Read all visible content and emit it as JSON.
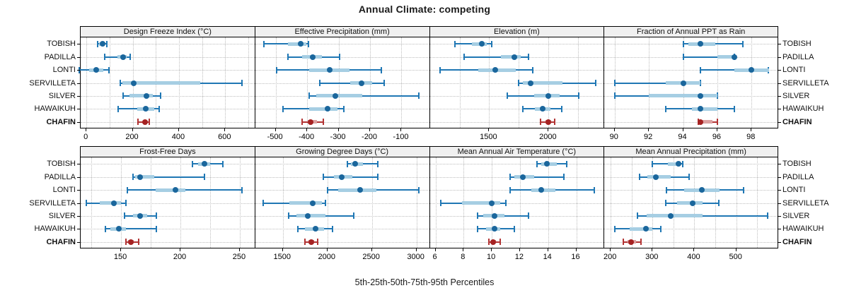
{
  "title": "Annual Climate: competing",
  "footer": "5th-25th-50th-75th-95th Percentiles",
  "sites": [
    "TOBISH",
    "PADILLA",
    "LONTI",
    "SERVILLETA",
    "SILVER",
    "HAWAIKUH",
    "CHAFIN"
  ],
  "highlight_site": "CHAFIN",
  "percentiles": [
    5,
    25,
    50,
    75,
    95
  ],
  "colors": {
    "blue_line": "#1f77b4",
    "blue_band": "#a6cee3",
    "blue_dot": "#1a669c",
    "red_line": "#b23434",
    "red_band": "#dca1a1",
    "red_dot": "#a52222",
    "grid": "#bdbdbd",
    "header_bg": "#f0f0f0",
    "border": "#000000"
  },
  "chart_data": [
    {
      "type": "percentile-dotplot",
      "title": "Design Freeze Index (°C)",
      "xlim": [
        -25,
        730
      ],
      "ticks": [
        0,
        200,
        400,
        600
      ],
      "grid": [
        0,
        100,
        200,
        300,
        400,
        500,
        600,
        700
      ],
      "series": [
        {
          "site": "TOBISH",
          "values": [
            48,
            55,
            70,
            80,
            87
          ]
        },
        {
          "site": "PADILLA",
          "values": [
            79,
            135,
            157,
            175,
            189
          ]
        },
        {
          "site": "LONTI",
          "values": [
            -31,
            12,
            43,
            73,
            97
          ]
        },
        {
          "site": "SERVILLETA",
          "values": [
            145,
            155,
            204,
            492,
            672
          ]
        },
        {
          "site": "SILVER",
          "values": [
            158,
            186,
            260,
            288,
            320
          ]
        },
        {
          "site": "HAWAIKUH",
          "values": [
            136,
            220,
            255,
            292,
            316
          ]
        },
        {
          "site": "CHAFIN",
          "values": [
            224,
            243,
            252,
            260,
            272
          ]
        }
      ]
    },
    {
      "type": "percentile-dotplot",
      "title": "Effective Precipitation (mm)",
      "xlim": [
        -565,
        -10
      ],
      "ticks": [
        -500,
        -400,
        -300,
        -200,
        -100
      ],
      "grid": [
        -500,
        -400,
        -300,
        -200,
        -100
      ],
      "series": [
        {
          "site": "TOBISH",
          "values": [
            -537,
            -460,
            -420,
            -402,
            -396
          ]
        },
        {
          "site": "PADILLA",
          "values": [
            -460,
            -415,
            -383,
            -353,
            -296
          ]
        },
        {
          "site": "LONTI",
          "values": [
            -496,
            -394,
            -328,
            -266,
            -164
          ]
        },
        {
          "site": "SERVILLETA",
          "values": [
            -359,
            -262,
            -226,
            -194,
            -154
          ]
        },
        {
          "site": "SILVER",
          "values": [
            -393,
            -370,
            -310,
            -225,
            -44
          ]
        },
        {
          "site": "HAWAIKUH",
          "values": [
            -477,
            -394,
            -336,
            -303,
            -284
          ]
        },
        {
          "site": "CHAFIN",
          "values": [
            -415,
            -398,
            -388,
            -368,
            -349
          ]
        }
      ]
    },
    {
      "type": "percentile-dotplot",
      "title": "Elevation (m)",
      "xlim": [
        1000,
        2470
      ],
      "ticks": [
        1500,
        2000
      ],
      "grid": [
        1250,
        1500,
        1750,
        2000,
        2250
      ],
      "series": [
        {
          "site": "TOBISH",
          "values": [
            1210,
            1355,
            1435,
            1478,
            1520
          ]
        },
        {
          "site": "PADILLA",
          "values": [
            1286,
            1596,
            1710,
            1765,
            1832
          ]
        },
        {
          "site": "LONTI",
          "values": [
            1086,
            1406,
            1550,
            1726,
            1866
          ]
        },
        {
          "site": "SERVILLETA",
          "values": [
            1746,
            1786,
            1850,
            2115,
            2396
          ]
        },
        {
          "site": "SILVER",
          "values": [
            1650,
            1876,
            1996,
            2096,
            2256
          ]
        },
        {
          "site": "HAWAIKUH",
          "values": [
            1782,
            1886,
            1950,
            2016,
            2110
          ]
        },
        {
          "site": "CHAFIN",
          "values": [
            1932,
            1972,
            1996,
            2022,
            2050
          ]
        }
      ]
    },
    {
      "type": "percentile-dotplot",
      "title": "Fraction of Annual PPT as Rain",
      "xlim": [
        89.4,
        99.6
      ],
      "ticks": [
        90,
        92,
        94,
        96,
        98
      ],
      "grid": [
        90,
        92,
        94,
        96,
        98
      ],
      "series": [
        {
          "site": "TOBISH",
          "values": [
            94,
            94.3,
            95,
            95.9,
            97.5
          ]
        },
        {
          "site": "PADILLA",
          "values": [
            94,
            96,
            97,
            97,
            97
          ]
        },
        {
          "site": "LONTI",
          "values": [
            95,
            97,
            98,
            99,
            99
          ]
        },
        {
          "site": "SERVILLETA",
          "values": [
            90,
            93,
            94,
            95,
            95
          ]
        },
        {
          "site": "SILVER",
          "values": [
            90,
            92,
            95,
            96,
            96
          ]
        },
        {
          "site": "HAWAIKUH",
          "values": [
            93,
            94.5,
            95,
            96,
            97
          ]
        },
        {
          "site": "CHAFIN",
          "values": [
            94.9,
            95,
            95,
            95.7,
            96
          ]
        }
      ]
    },
    {
      "type": "percentile-dotplot",
      "title": "Frost-Free Days",
      "xlim": [
        116,
        263
      ],
      "ticks": [
        150,
        200,
        250
      ],
      "grid": [
        125,
        150,
        175,
        200,
        225,
        250
      ],
      "series": [
        {
          "site": "TOBISH",
          "values": [
            210,
            215,
            220,
            225,
            236
          ]
        },
        {
          "site": "PADILLA",
          "values": [
            160,
            162,
            166,
            178,
            220
          ]
        },
        {
          "site": "LONTI",
          "values": [
            155,
            179,
            196,
            204,
            252
          ]
        },
        {
          "site": "SERVILLETA",
          "values": [
            121,
            132,
            144,
            150,
            154
          ]
        },
        {
          "site": "SILVER",
          "values": [
            153,
            160,
            166,
            172,
            180
          ]
        },
        {
          "site": "HAWAIKUH",
          "values": [
            137,
            141,
            148,
            154,
            180
          ]
        },
        {
          "site": "CHAFIN",
          "values": [
            154,
            156,
            158,
            161,
            165
          ]
        }
      ]
    },
    {
      "type": "percentile-dotplot",
      "title": "Growing Degree Days (°C)",
      "xlim": [
        1190,
        3150
      ],
      "ticks": [
        1500,
        2000,
        2500,
        3000
      ],
      "grid": [
        1500,
        2000,
        2500,
        3000
      ],
      "series": [
        {
          "site": "TOBISH",
          "values": [
            2228,
            2262,
            2310,
            2400,
            2565
          ]
        },
        {
          "site": "PADILLA",
          "values": [
            1955,
            2070,
            2165,
            2280,
            2570
          ]
        },
        {
          "site": "LONTI",
          "values": [
            2000,
            2120,
            2370,
            2550,
            3030
          ]
        },
        {
          "site": "SERVILLETA",
          "values": [
            1282,
            1575,
            1835,
            1935,
            1975
          ]
        },
        {
          "site": "SILVER",
          "values": [
            1565,
            1655,
            1780,
            1975,
            2295
          ]
        },
        {
          "site": "HAWAIKUH",
          "values": [
            1672,
            1750,
            1870,
            1960,
            2060
          ]
        },
        {
          "site": "CHAFIN",
          "values": [
            1748,
            1790,
            1820,
            1855,
            1888
          ]
        }
      ]
    },
    {
      "type": "percentile-dotplot",
      "title": "Mean Annual Air Temperature (°C)",
      "xlim": [
        5.6,
        18.0
      ],
      "ticks": [
        6,
        8,
        10,
        12,
        14,
        16
      ],
      "grid": [
        6,
        8,
        10,
        12,
        14,
        16
      ],
      "series": [
        {
          "site": "TOBISH",
          "values": [
            13.2,
            13.5,
            13.9,
            14.6,
            15.3
          ]
        },
        {
          "site": "PADILLA",
          "values": [
            11.3,
            11.6,
            12.2,
            13.0,
            15.1
          ]
        },
        {
          "site": "LONTI",
          "values": [
            11.3,
            12.8,
            13.5,
            14.5,
            17.3
          ]
        },
        {
          "site": "SERVILLETA",
          "values": [
            6.4,
            7.9,
            10.0,
            10.6,
            11.0
          ]
        },
        {
          "site": "SILVER",
          "values": [
            9.0,
            9.4,
            10.2,
            10.9,
            12.6
          ]
        },
        {
          "site": "HAWAIKUH",
          "values": [
            9.0,
            9.6,
            10.2,
            10.6,
            11.6
          ]
        },
        {
          "site": "CHAFIN",
          "values": [
            9.8,
            10.0,
            10.1,
            10.3,
            10.6
          ]
        }
      ]
    },
    {
      "type": "percentile-dotplot",
      "title": "Mean Annual Precipitation (mm)",
      "xlim": [
        185,
        602
      ],
      "ticks": [
        200,
        300,
        400,
        500
      ],
      "grid": [
        200,
        250,
        300,
        350,
        400,
        450,
        500,
        550
      ],
      "series": [
        {
          "site": "TOBISH",
          "values": [
            300,
            336,
            362,
            367,
            373
          ]
        },
        {
          "site": "PADILLA",
          "values": [
            269,
            288,
            308,
            344,
            387
          ]
        },
        {
          "site": "LONTI",
          "values": [
            333,
            375,
            418,
            460,
            518
          ]
        },
        {
          "site": "SERVILLETA",
          "values": [
            332,
            358,
            396,
            420,
            458
          ]
        },
        {
          "site": "SILVER",
          "values": [
            264,
            286,
            343,
            420,
            575
          ]
        },
        {
          "site": "HAWAIKUH",
          "values": [
            210,
            246,
            284,
            300,
            319
          ]
        },
        {
          "site": "CHAFIN",
          "values": [
            230,
            240,
            249,
            261,
            273
          ]
        }
      ]
    }
  ]
}
